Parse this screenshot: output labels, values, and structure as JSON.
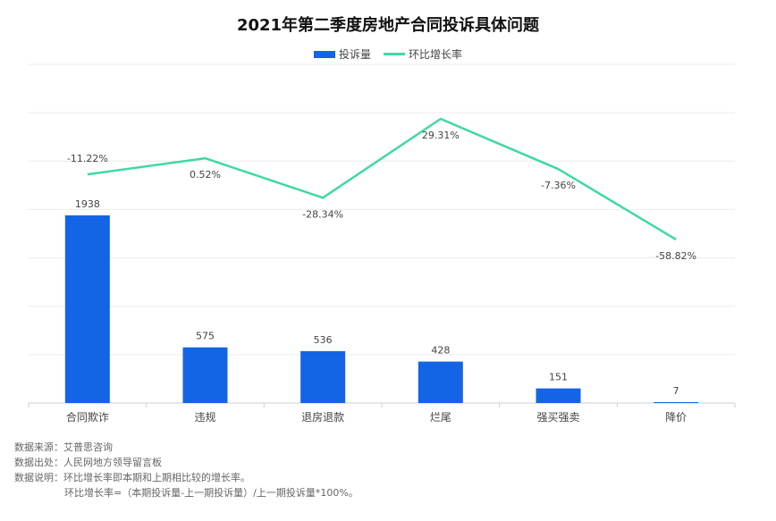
{
  "chart_data": {
    "type": "bar",
    "title": "2021年第二季度房地产合同投诉具体问题",
    "categories": [
      "合同欺诈",
      "违规",
      "退房退款",
      "烂尾",
      "强买强卖",
      "降价"
    ],
    "series": [
      {
        "name": "投诉量",
        "type": "bar",
        "values": [
          1938,
          575,
          536,
          428,
          151,
          7
        ],
        "color": "#1464e6"
      },
      {
        "name": "环比增长率",
        "type": "line",
        "values": [
          -11.22,
          0.52,
          -28.34,
          29.31,
          -7.36,
          -58.82
        ],
        "labels": [
          "-11.22%",
          "0.52%",
          "-28.34%",
          "29.31%",
          "-7.36%",
          "-58.82%"
        ],
        "color": "#3fd9a3"
      }
    ],
    "grid": true,
    "legend": "top"
  },
  "footer": {
    "line1": "数据来源：艾普思咨询",
    "line2": "数据出处：人民网地方领导留言板",
    "line3": "数据说明：环比增长率即本期和上期相比较的增长率。",
    "line4": "环比增长率=（本期投诉量-上一期投诉量）/上一期投诉量*100%。"
  }
}
